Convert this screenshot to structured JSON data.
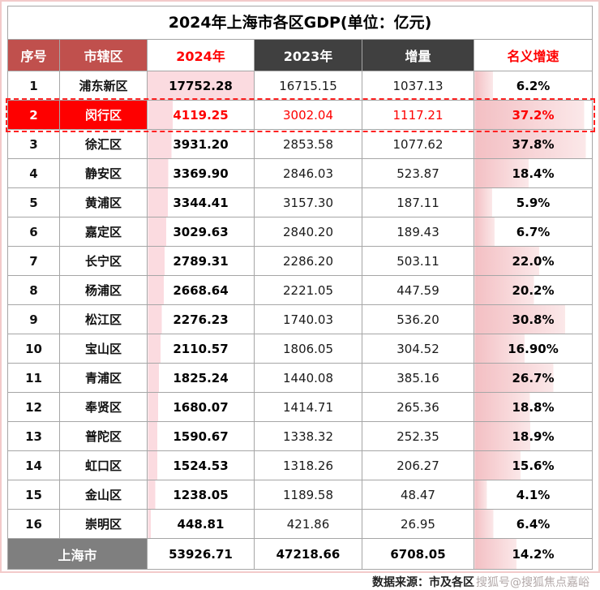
{
  "chart_data": {
    "type": "table",
    "title": "2024年上海市各区GDP(单位：亿元)",
    "columns": [
      "序号",
      "市辖区",
      "2024年",
      "2023年",
      "增量",
      "名义增速"
    ],
    "rows": [
      {
        "rank": "1",
        "district": "浦东新区",
        "y2024": "17752.28",
        "y2023": "16715.15",
        "delta": "1037.13",
        "growth": "6.2%",
        "y2024_val": 17752.28,
        "growth_val": 6.2,
        "highlight": false
      },
      {
        "rank": "2",
        "district": "闵行区",
        "y2024": "4119.25",
        "y2023": "3002.04",
        "delta": "1117.21",
        "growth": "37.2%",
        "y2024_val": 4119.25,
        "growth_val": 37.2,
        "highlight": true
      },
      {
        "rank": "3",
        "district": "徐汇区",
        "y2024": "3931.20",
        "y2023": "2853.58",
        "delta": "1077.62",
        "growth": "37.8%",
        "y2024_val": 3931.2,
        "growth_val": 37.8,
        "highlight": false
      },
      {
        "rank": "4",
        "district": "静安区",
        "y2024": "3369.90",
        "y2023": "2846.03",
        "delta": "523.87",
        "growth": "18.4%",
        "y2024_val": 3369.9,
        "growth_val": 18.4,
        "highlight": false
      },
      {
        "rank": "5",
        "district": "黄浦区",
        "y2024": "3344.41",
        "y2023": "3157.30",
        "delta": "187.11",
        "growth": "5.9%",
        "y2024_val": 3344.41,
        "growth_val": 5.9,
        "highlight": false
      },
      {
        "rank": "6",
        "district": "嘉定区",
        "y2024": "3029.63",
        "y2023": "2840.20",
        "delta": "189.43",
        "growth": "6.7%",
        "y2024_val": 3029.63,
        "growth_val": 6.7,
        "highlight": false
      },
      {
        "rank": "7",
        "district": "长宁区",
        "y2024": "2789.31",
        "y2023": "2286.20",
        "delta": "503.11",
        "growth": "22.0%",
        "y2024_val": 2789.31,
        "growth_val": 22.0,
        "highlight": false
      },
      {
        "rank": "8",
        "district": "杨浦区",
        "y2024": "2668.64",
        "y2023": "2221.05",
        "delta": "447.59",
        "growth": "20.2%",
        "y2024_val": 2668.64,
        "growth_val": 20.2,
        "highlight": false
      },
      {
        "rank": "9",
        "district": "松江区",
        "y2024": "2276.23",
        "y2023": "1740.03",
        "delta": "536.20",
        "growth": "30.8%",
        "y2024_val": 2276.23,
        "growth_val": 30.8,
        "highlight": false
      },
      {
        "rank": "10",
        "district": "宝山区",
        "y2024": "2110.57",
        "y2023": "1806.05",
        "delta": "304.52",
        "growth": "16.90%",
        "y2024_val": 2110.57,
        "growth_val": 16.9,
        "highlight": false
      },
      {
        "rank": "11",
        "district": "青浦区",
        "y2024": "1825.24",
        "y2023": "1440.08",
        "delta": "385.16",
        "growth": "26.7%",
        "y2024_val": 1825.24,
        "growth_val": 26.7,
        "highlight": false
      },
      {
        "rank": "12",
        "district": "奉贤区",
        "y2024": "1680.07",
        "y2023": "1414.71",
        "delta": "265.36",
        "growth": "18.8%",
        "y2024_val": 1680.07,
        "growth_val": 18.8,
        "highlight": false
      },
      {
        "rank": "13",
        "district": "普陀区",
        "y2024": "1590.67",
        "y2023": "1338.32",
        "delta": "252.35",
        "growth": "18.9%",
        "y2024_val": 1590.67,
        "growth_val": 18.9,
        "highlight": false
      },
      {
        "rank": "14",
        "district": "虹口区",
        "y2024": "1524.53",
        "y2023": "1318.26",
        "delta": "206.27",
        "growth": "15.6%",
        "y2024_val": 1524.53,
        "growth_val": 15.6,
        "highlight": false
      },
      {
        "rank": "15",
        "district": "金山区",
        "y2024": "1238.05",
        "y2023": "1189.58",
        "delta": "48.47",
        "growth": "4.1%",
        "y2024_val": 1238.05,
        "growth_val": 4.1,
        "highlight": false
      },
      {
        "rank": "16",
        "district": "崇明区",
        "y2024": "448.81",
        "y2023": "421.86",
        "delta": "26.95",
        "growth": "6.4%",
        "y2024_val": 448.81,
        "growth_val": 6.4,
        "highlight": false
      }
    ],
    "footer": {
      "label": "上海市",
      "y2024": "53926.71",
      "y2023": "47218.66",
      "delta": "6708.05",
      "growth": "14.2%",
      "growth_val": 14.2
    },
    "bar_scales": {
      "gdp_max": 17752.28,
      "growth_max": 40
    }
  },
  "source": {
    "label": "数据来源：市及各区",
    "watermark": "搜狐号@搜狐焦点嘉峪"
  },
  "colors": {
    "header_red": "#c0504d",
    "header_dark": "#404040",
    "accent_red": "#fe0000",
    "footer_gray": "#7f7f7f",
    "bar_pink": "#f3bfc3",
    "bar_pink_light": "#fbdbe0"
  }
}
